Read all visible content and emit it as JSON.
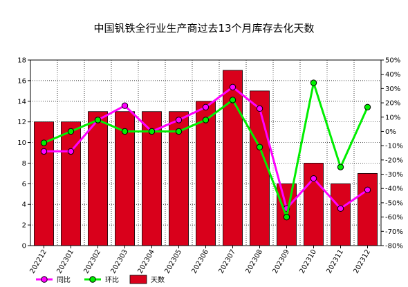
{
  "title": "中国钒铁全行业生产商过去13个月库存去化天数",
  "chart_data": {
    "type": "bar",
    "categories": [
      "202212",
      "202301",
      "202302",
      "202303",
      "202304",
      "202305",
      "202306",
      "202307",
      "202308",
      "202309",
      "202310",
      "202311",
      "202312"
    ],
    "series": [
      {
        "name": "天数",
        "type": "bar",
        "axis": "left",
        "color": "#d9001b",
        "values": [
          12,
          12,
          13,
          13,
          13,
          13,
          14,
          17,
          15,
          6,
          8,
          6,
          7
        ]
      },
      {
        "name": "同比",
        "type": "line",
        "axis": "right",
        "unit": "%",
        "color": "#ff00ff",
        "values": [
          -14,
          -14,
          8,
          18,
          0,
          8,
          17,
          31,
          16,
          -54,
          -33,
          -54,
          -41
        ]
      },
      {
        "name": "环比",
        "type": "line",
        "axis": "right",
        "unit": "%",
        "color": "#00ee00",
        "values": [
          -8,
          0,
          8,
          0,
          0,
          0,
          8,
          22,
          -11,
          -60,
          34,
          -25,
          17
        ]
      }
    ],
    "ylim_left": [
      0,
      18
    ],
    "yticks_left": [
      "0",
      "2",
      "4",
      "6",
      "8",
      "10",
      "12",
      "14",
      "16",
      "18"
    ],
    "ylim_right": [
      -80,
      50
    ],
    "yticks_right": [
      "-80%",
      "-70%",
      "-60%",
      "-50%",
      "-40%",
      "-30%",
      "-20%",
      "-10%",
      "0%",
      "10%",
      "20%",
      "30%",
      "40%",
      "50%"
    ],
    "grid": true,
    "legend_position": "bottom-left",
    "legend": [
      "同比",
      "环比",
      "天数"
    ]
  }
}
